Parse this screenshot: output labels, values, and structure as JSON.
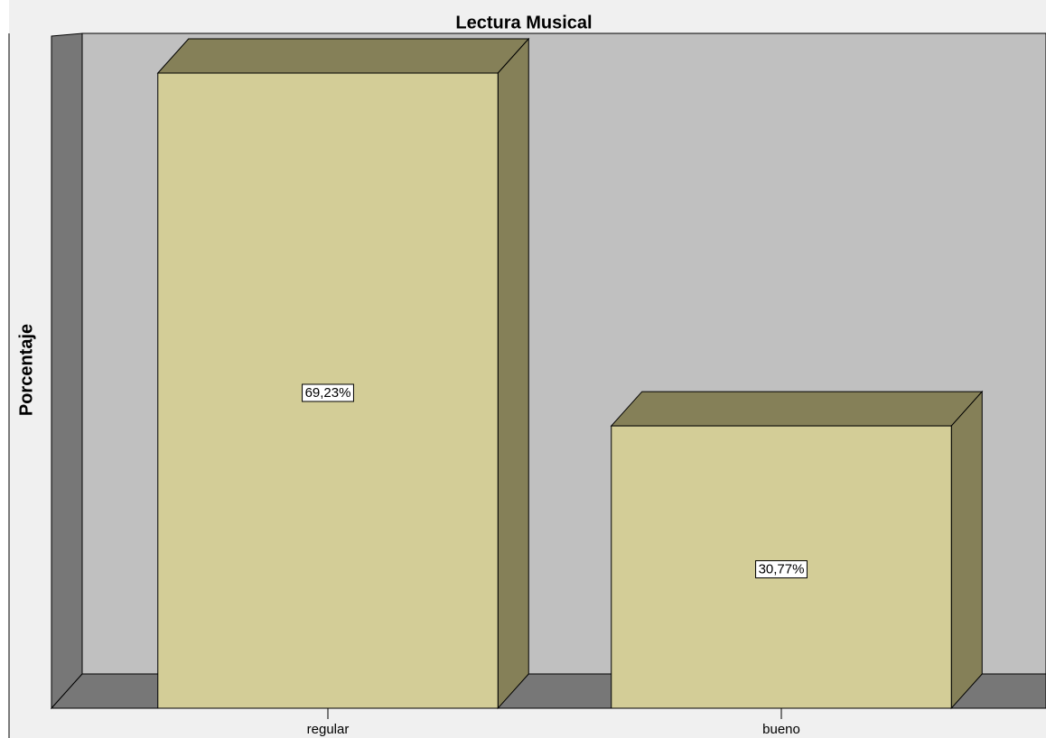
{
  "chart_data": {
    "type": "bar3d",
    "title": "Lectura Musical",
    "y_label": "Porcentaje",
    "categories": [
      "regular",
      "bueno"
    ],
    "values": [
      69.23,
      30.77
    ],
    "value_labels": [
      "69,23%",
      "30,77%"
    ],
    "color": "#d3cd97",
    "ylim": [
      0,
      74
    ]
  }
}
